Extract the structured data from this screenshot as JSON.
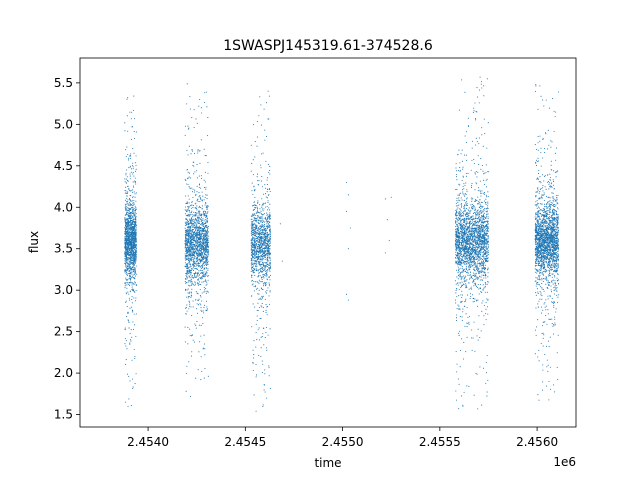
{
  "chart_data": {
    "type": "scatter",
    "title": "1SWASPJ145319.61-374528.6",
    "xlabel": "time",
    "ylabel": "flux",
    "x_offset_label": "1e6",
    "xlim": [
      2.45365,
      2.4562
    ],
    "ylim": [
      1.35,
      5.8
    ],
    "x_ticks": [
      2.454,
      2.4545,
      2.455,
      2.4555,
      2.456
    ],
    "x_tick_labels": [
      "2.4540",
      "2.4545",
      "2.4550",
      "2.4555",
      "2.4560"
    ],
    "y_ticks": [
      1.5,
      2.0,
      2.5,
      3.0,
      3.5,
      4.0,
      4.5,
      5.0,
      5.5
    ],
    "y_tick_labels": [
      "1.5",
      "2.0",
      "2.5",
      "3.0",
      "3.5",
      "4.0",
      "4.5",
      "5.0",
      "5.5"
    ],
    "grid": false,
    "marker_color": "#1f77b4",
    "observation_seasons": [
      {
        "t_start": 2.45388,
        "t_end": 2.45394,
        "flux_center": 3.6,
        "flux_min": 1.55,
        "flux_max": 5.35,
        "approx_points": 1400
      },
      {
        "t_start": 2.45419,
        "t_end": 2.45431,
        "flux_center": 3.55,
        "flux_min": 1.55,
        "flux_max": 5.6,
        "approx_points": 1700
      },
      {
        "t_start": 2.45453,
        "t_end": 2.45463,
        "flux_center": 3.55,
        "flux_min": 1.5,
        "flux_max": 5.5,
        "approx_points": 1200
      },
      {
        "t_start": 2.45558,
        "t_end": 2.45575,
        "flux_center": 3.6,
        "flux_min": 1.55,
        "flux_max": 5.6,
        "approx_points": 2200
      },
      {
        "t_start": 2.45599,
        "t_end": 2.45611,
        "flux_center": 3.6,
        "flux_min": 1.6,
        "flux_max": 5.5,
        "approx_points": 2000
      }
    ],
    "isolated_points": [
      [
        2.45468,
        3.8
      ],
      [
        2.45469,
        3.35
      ],
      [
        2.45502,
        4.3
      ],
      [
        2.45503,
        4.15
      ],
      [
        2.45502,
        3.95
      ],
      [
        2.45504,
        3.75
      ],
      [
        2.45503,
        3.5
      ],
      [
        2.45502,
        2.95
      ],
      [
        2.45503,
        2.88
      ],
      [
        2.45522,
        4.1
      ],
      [
        2.45525,
        4.12
      ],
      [
        2.45523,
        3.85
      ],
      [
        2.45524,
        3.6
      ],
      [
        2.45522,
        3.45
      ]
    ]
  }
}
